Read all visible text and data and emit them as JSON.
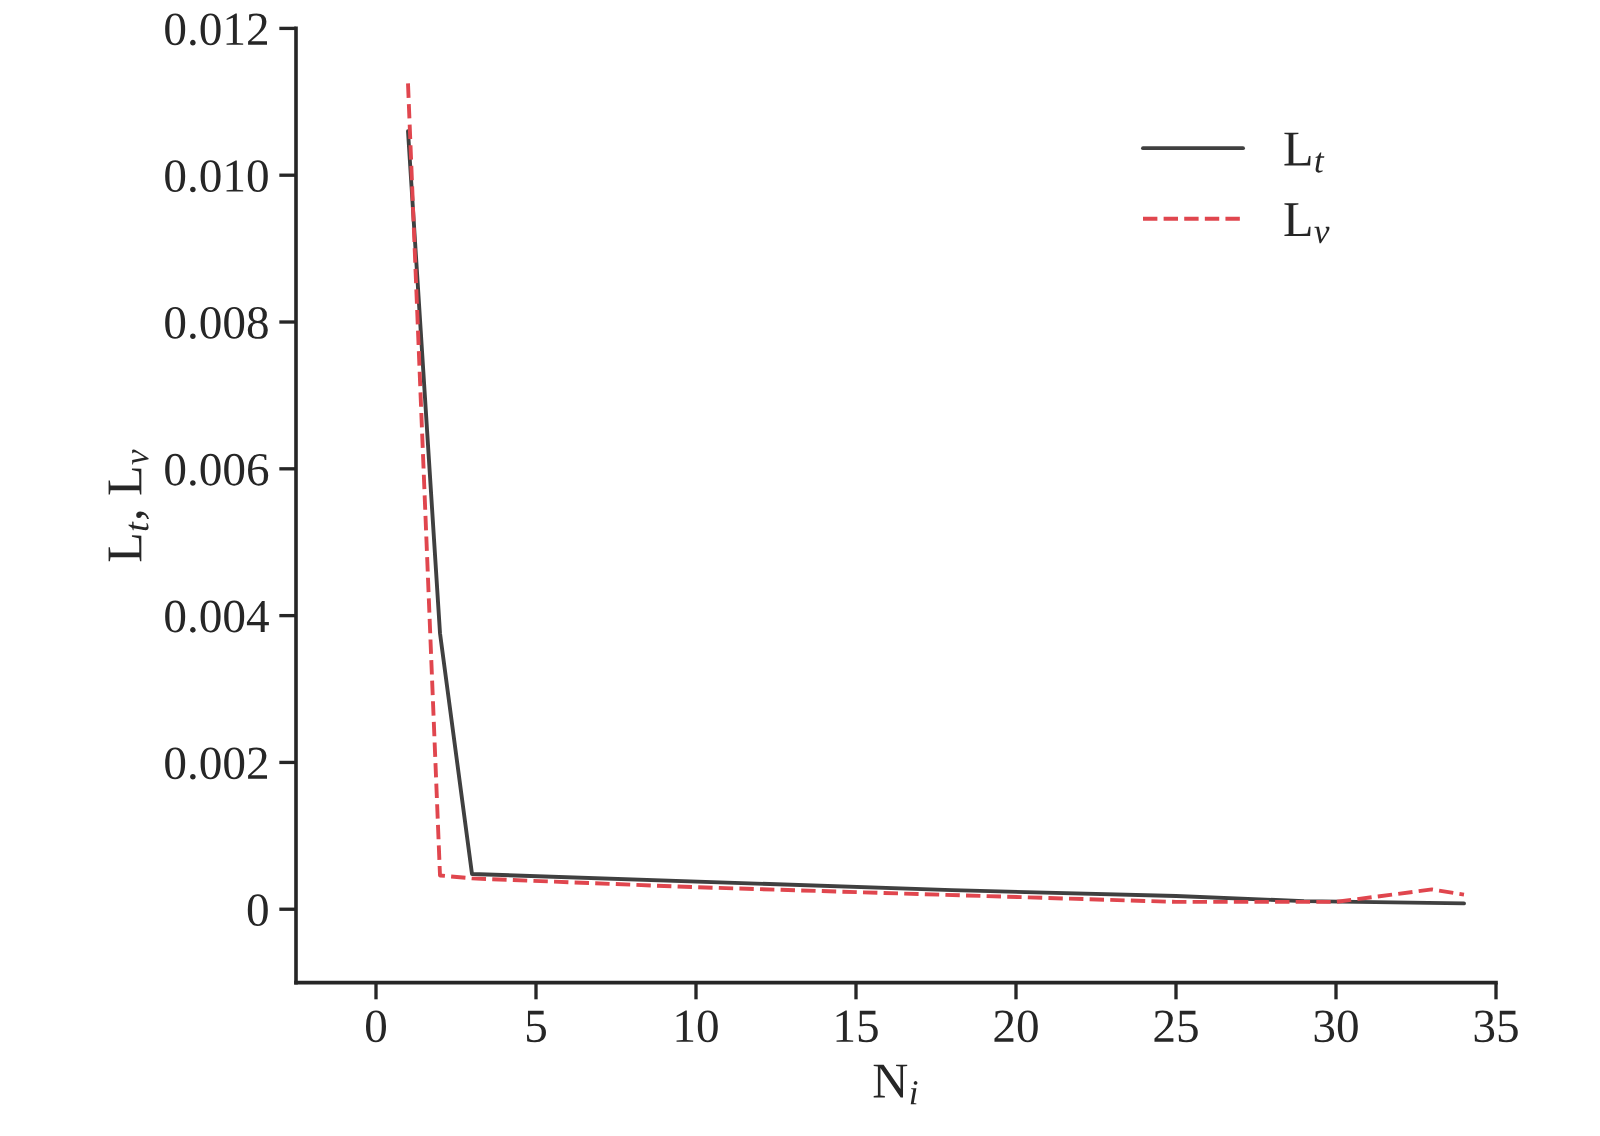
{
  "chart_data": {
    "type": "line",
    "xlabel": "N$_{i}$",
    "ylabel": "L$_{t}$, L$_{v}$",
    "xlim": [
      -2.5,
      35
    ],
    "xticks": [
      0,
      5,
      10,
      15,
      20,
      25,
      30,
      35
    ],
    "ylim": [
      -0.001,
      0.012
    ],
    "yticks": [
      0,
      0.002,
      0.004,
      0.006,
      0.008,
      {
        "value": 0.01,
        "label": "0.010"
      },
      0.012
    ],
    "grid": false,
    "legend": "top right",
    "marker": "none",
    "series": [
      {
        "name": "L$_{t}$",
        "color": "#404040",
        "line_style": "solid",
        "x": [
          1,
          2,
          3,
          18,
          25,
          29,
          34
        ],
        "values": [
          0.0106,
          0.00376,
          0.00048,
          0.00026,
          0.00018,
          0.00011,
          8e-05
        ]
      },
      {
        "name": "L$_{v}$",
        "color": "#e0464e",
        "line_style": "dashed",
        "x": [
          1,
          2,
          3,
          10,
          25,
          30,
          33,
          34
        ],
        "values": [
          0.01125,
          0.00046,
          0.00042,
          0.0003,
          0.0001,
          0.0001,
          0.00027,
          0.0002
        ]
      }
    ]
  }
}
